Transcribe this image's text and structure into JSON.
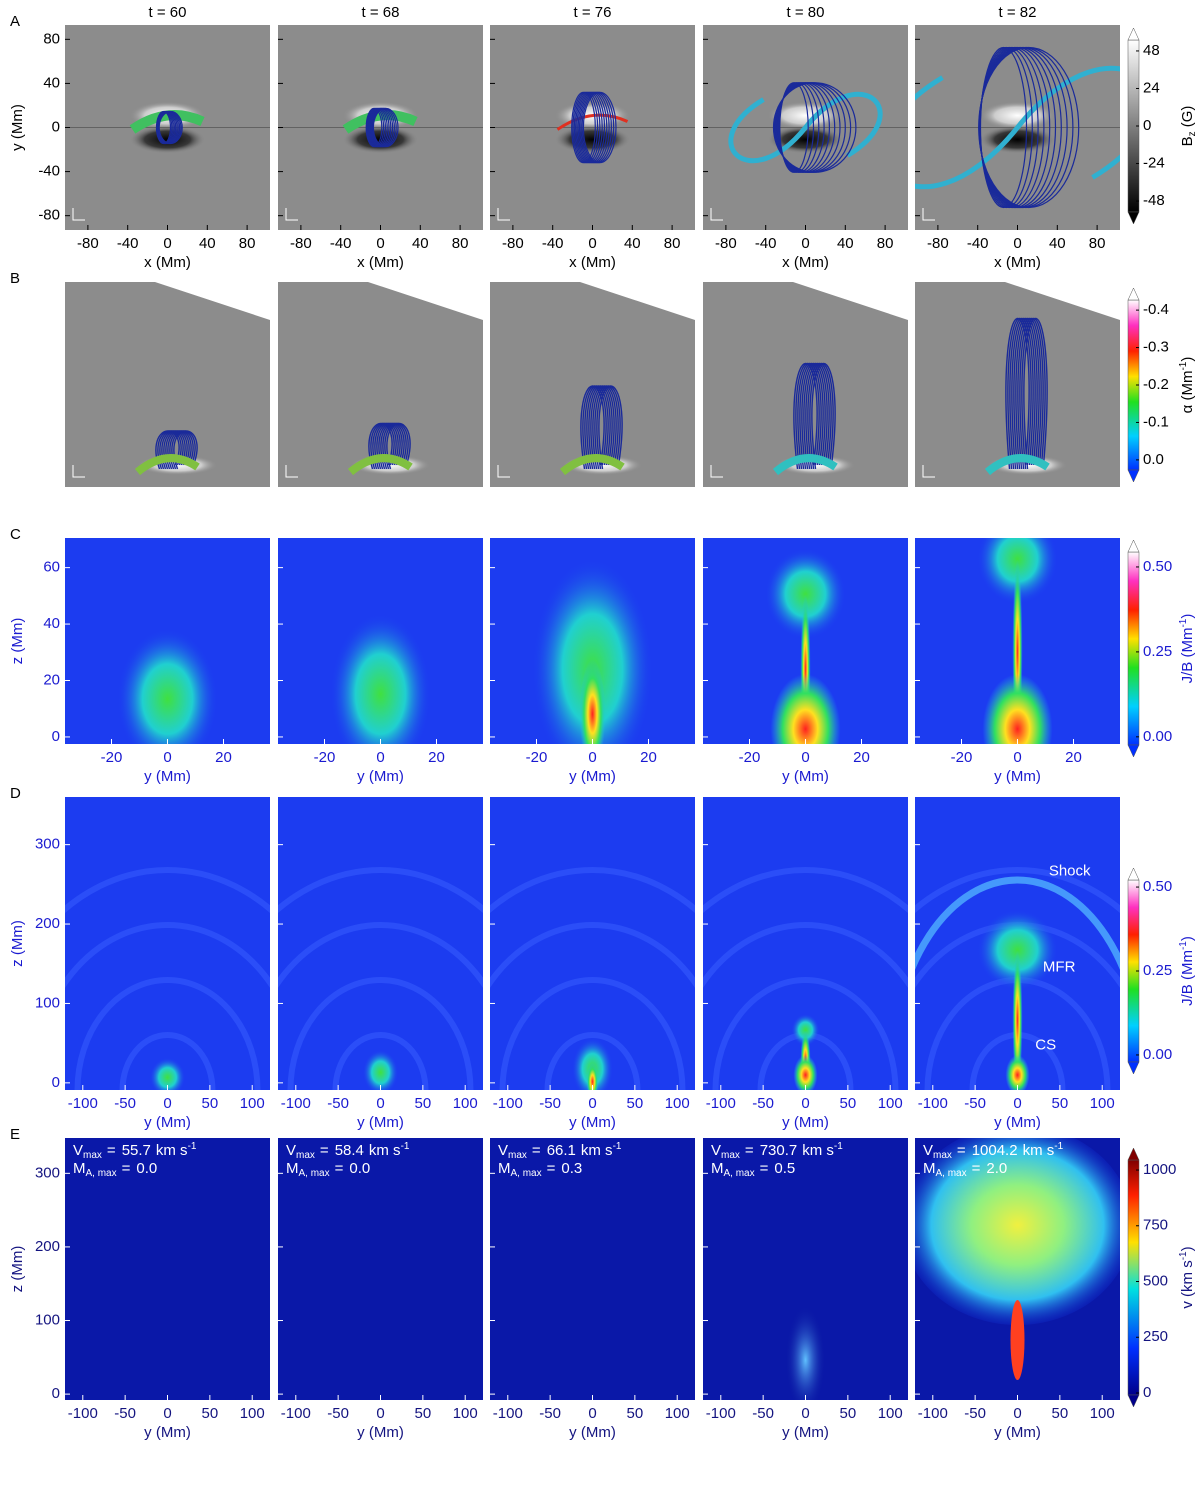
{
  "panel_labels": [
    "A",
    "B",
    "C",
    "D",
    "E"
  ],
  "times": [
    "t = 60",
    "t = 68",
    "t = 76",
    "t = 80",
    "t = 82"
  ],
  "rows": [
    {
      "xlabel": "x (Mm)",
      "ylabel": "y (Mm)",
      "xlim": [
        -103,
        103
      ],
      "xticks": [
        -80,
        -40,
        0,
        40,
        80
      ],
      "ylim": [
        -93,
        93
      ],
      "yticks": [
        -80,
        -40,
        0,
        40,
        80
      ],
      "colorbar": {
        "label": {
          "text": "B",
          "sub": "z",
          "after": " (G)"
        },
        "clim": [
          -55,
          55
        ],
        "ticks": [
          -48,
          -24,
          0,
          24,
          48
        ]
      }
    },
    {
      "colorbar": {
        "label": {
          "text": "α (Mm",
          "sup": "-1",
          "after": ")"
        },
        "clim": [
          0.027,
          -0.427
        ],
        "ticks": [
          {
            "value": 0,
            "label": "0.0"
          },
          -0.1,
          -0.2,
          -0.3,
          -0.4
        ]
      }
    },
    {
      "xlabel": "y (Mm)",
      "ylabel": "z (Mm)",
      "xlim": [
        -36.6,
        36.6
      ],
      "xticks": [
        -20,
        0,
        20
      ],
      "ylim": [
        -2.5,
        70.5
      ],
      "yticks": [
        0,
        20,
        40,
        60
      ],
      "colorbar": {
        "label": {
          "text": "J/B (Mm",
          "sup": "-1",
          "after": ")"
        },
        "clim": [
          -0.024,
          0.544
        ],
        "ticks": [
          {
            "value": 0,
            "label": "0.00"
          },
          {
            "value": 0.25,
            "label": "0.25"
          },
          {
            "value": 0.5,
            "label": "0.50"
          }
        ]
      }
    },
    {
      "xlabel": "y (Mm)",
      "ylabel": "z (Mm)",
      "xlim": [
        -121,
        121
      ],
      "xticks": [
        -100,
        -50,
        0,
        50,
        100
      ],
      "ylim": [
        -9,
        360
      ],
      "yticks": [
        0,
        100,
        200,
        300
      ],
      "colorbar": {
        "label": {
          "text": "J/B (Mm",
          "sup": "-1",
          "after": ")"
        },
        "clim": [
          -0.021,
          0.521
        ],
        "ticks": [
          {
            "value": 0,
            "label": "0.00"
          },
          {
            "value": 0.25,
            "label": "0.25"
          },
          {
            "value": 0.5,
            "label": "0.50"
          }
        ]
      },
      "annotations": [
        {
          "text": "Shock",
          "x": 37,
          "y": 266
        },
        {
          "text": "MFR",
          "x": 30,
          "y": 145
        },
        {
          "text": "CS",
          "x": 21,
          "y": 47
        }
      ]
    },
    {
      "xlabel": "y (Mm)",
      "ylabel": "z (Mm)",
      "xlim": [
        -121,
        121
      ],
      "xticks": [
        -100,
        -50,
        0,
        50,
        100
      ],
      "ylim": [
        -8,
        348
      ],
      "yticks": [
        0,
        100,
        200,
        300
      ],
      "colorbar": {
        "label": {
          "text": "v (km s",
          "sup": "-1",
          "after": ")"
        },
        "clim": [
          -9,
          1045
        ],
        "ticks": [
          0,
          250,
          500,
          750,
          1000
        ]
      },
      "vmax": {
        "symbol": "V",
        "sub": "max",
        "eq": "=",
        "values": [
          55.7,
          58.4,
          66.1,
          730.7,
          1004.2
        ],
        "unit": "km s",
        "unit_sup": "-1"
      },
      "ma_max": {
        "symbol": "M",
        "sub": "A, max",
        "eq": "=",
        "values": [
          0,
          0,
          0.3,
          0.5,
          2
        ],
        "value_labels": [
          "0.0",
          "0.0",
          "0.3",
          "0.5",
          "2.0"
        ]
      }
    }
  ]
}
